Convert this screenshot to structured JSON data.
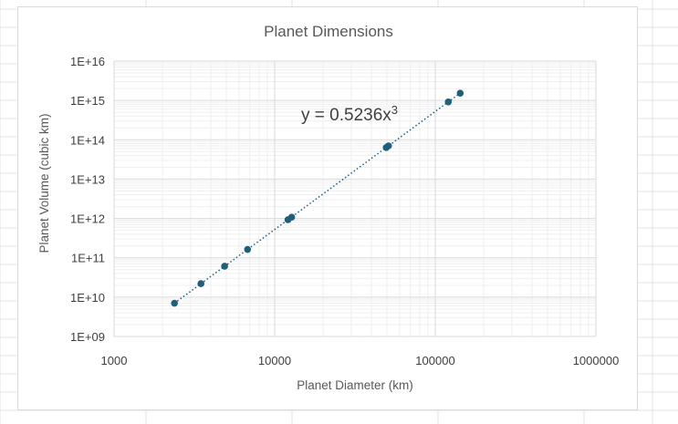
{
  "chart_data": {
    "type": "scatter",
    "title": "Planet Dimensions",
    "xlabel": "Planet Diameter (km)",
    "ylabel": "Planet Volume (cubic km)",
    "x_scale": "log",
    "y_scale": "log",
    "xlim": [
      1000,
      1000000
    ],
    "ylim": [
      1000000000,
      10000000000000000
    ],
    "x_ticks": [
      "1000",
      "10000",
      "100000",
      "1000000"
    ],
    "y_ticks": [
      "1E+09",
      "1E+10",
      "1E+11",
      "1E+12",
      "1E+13",
      "1E+14",
      "1E+15",
      "1E+16"
    ],
    "grid": true,
    "legend": "none",
    "trendline": {
      "equation": "y = 0.5236x",
      "exponent": "3",
      "coefficient": 0.5236,
      "power": 3,
      "style": "dotted"
    },
    "series": [
      {
        "x": [
          2377,
          3475,
          4879,
          6779,
          12104,
          12756,
          49528,
          51118,
          120536,
          142984
        ],
        "y": [
          7000000000.0,
          22000000000.0,
          61000000000.0,
          163000000000.0,
          928000000000.0,
          1080000000000.0,
          63600000000000.0,
          69900000000000.0,
          917000000000000.0,
          1530000000000000.0
        ]
      }
    ],
    "colors": {
      "marker": "#1f5f7a",
      "trendline": "#1f5f7a",
      "grid_major": "#d9d9d9",
      "grid_minor": "#efefef"
    }
  }
}
